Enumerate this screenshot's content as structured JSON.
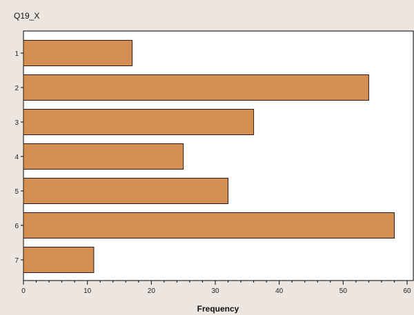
{
  "chart_data": {
    "type": "bar",
    "orientation": "horizontal",
    "title": "Q19_X",
    "categories": [
      "1",
      "2",
      "3",
      "4",
      "5",
      "6",
      "7"
    ],
    "values": [
      17,
      54,
      36,
      25,
      32,
      58,
      11
    ],
    "xlabel": "Frequency",
    "ylabel": "",
    "xlim": [
      0,
      60
    ],
    "xticks": [
      0,
      10,
      20,
      30,
      40,
      50,
      60
    ],
    "grid": false,
    "colors": {
      "bar_fill": "#d58e52",
      "bar_stroke": "#2a1a10",
      "plot_background": "#ffffff",
      "page_background": "#ede5df"
    }
  }
}
